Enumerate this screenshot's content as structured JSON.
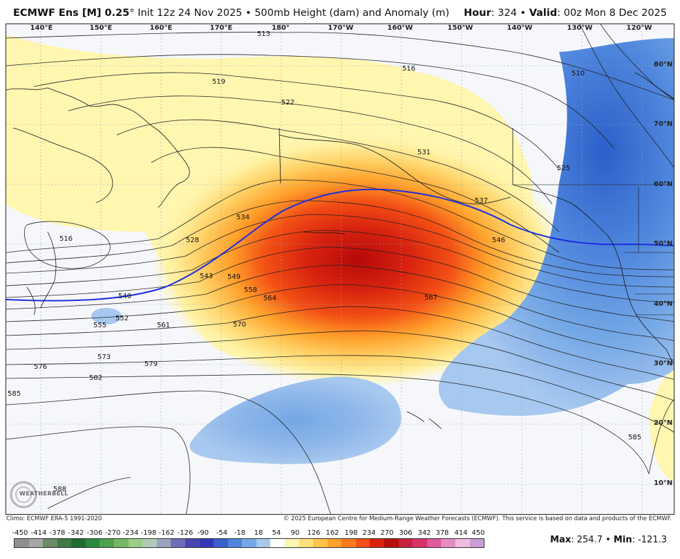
{
  "header": {
    "model": "ECMWF Ens [M] 0.25",
    "degree": "°",
    "init": "Init 12z 24 Nov 2025",
    "sep": "•",
    "product": "500mb Height (dam) and Anomaly (m)",
    "hour_label": "Hour",
    "hour_value": ": 324",
    "valid_label": "Valid",
    "valid_value": ": 00z Mon 8 Dec 2025"
  },
  "longitude_labels": [
    "140°E",
    "150°E",
    "160°E",
    "170°E",
    "180°",
    "170°W",
    "160°W",
    "150°W",
    "140°W",
    "130°W",
    "120°W"
  ],
  "latitude_labels": [
    "80°N",
    "70°N",
    "60°N",
    "50°N",
    "40°N",
    "30°N",
    "20°N",
    "10°N"
  ],
  "contour_labels": [
    "513",
    "516",
    "519",
    "522",
    "525",
    "528",
    "531",
    "534",
    "537",
    "540",
    "543",
    "546",
    "549",
    "552",
    "555",
    "558",
    "561",
    "564",
    "567",
    "570",
    "573",
    "576",
    "579",
    "582",
    "585",
    "588",
    "510",
    "516"
  ],
  "anomaly_scale": {
    "labels": [
      "-450",
      "-414",
      "-378",
      "-342",
      "-306",
      "-270",
      "-234",
      "-198",
      "-162",
      "-126",
      "-90",
      "-54",
      "-18",
      "18",
      "54",
      "90",
      "126",
      "162",
      "198",
      "234",
      "270",
      "306",
      "342",
      "378",
      "414",
      "450"
    ],
    "colors": [
      "#8f8f8f",
      "#a5a5a5",
      "#6a8a6a",
      "#3f7a45",
      "#1f6b35",
      "#2b8a40",
      "#4ea24e",
      "#74b865",
      "#9ccd85",
      "#b2c9b8",
      "#9aa2bd",
      "#6f6fb8",
      "#4747b0",
      "#3038b8",
      "#3b5fcc",
      "#4f86dd",
      "#74a7e6",
      "#a7c8ef",
      "#ffffff",
      "#fff6b0",
      "#ffe07a",
      "#ffc44a",
      "#ffa12b",
      "#ff7a1e",
      "#f24f14",
      "#d9230f",
      "#b50e0a",
      "#c8213d",
      "#d6336b",
      "#de5a9a",
      "#e68cc4",
      "#eebcdf",
      "#c9a0d3"
    ]
  },
  "footer": {
    "climo": "Climo: ECMWF ERA-5 1991-2020",
    "copyright": "© 2025 European Centre for Medium-Range Weather Forecasts (ECMWF). This service is based on data and products of the ECMWF."
  },
  "stats": {
    "max_label": "Max",
    "max_value": ": 254.7",
    "sep": "•",
    "min_label": "Min",
    "min_value": ": -121.3"
  },
  "logo": {
    "text": "WEATHERBELL"
  },
  "colors": {
    "positive_core": "#b5090a",
    "positive_mid": "#ff7a1e",
    "positive_outer": "#fff6b0",
    "negative_outer": "#a7c8ef",
    "negative_core": "#2c5fc9",
    "highlight_contour": "#1a2de0"
  }
}
